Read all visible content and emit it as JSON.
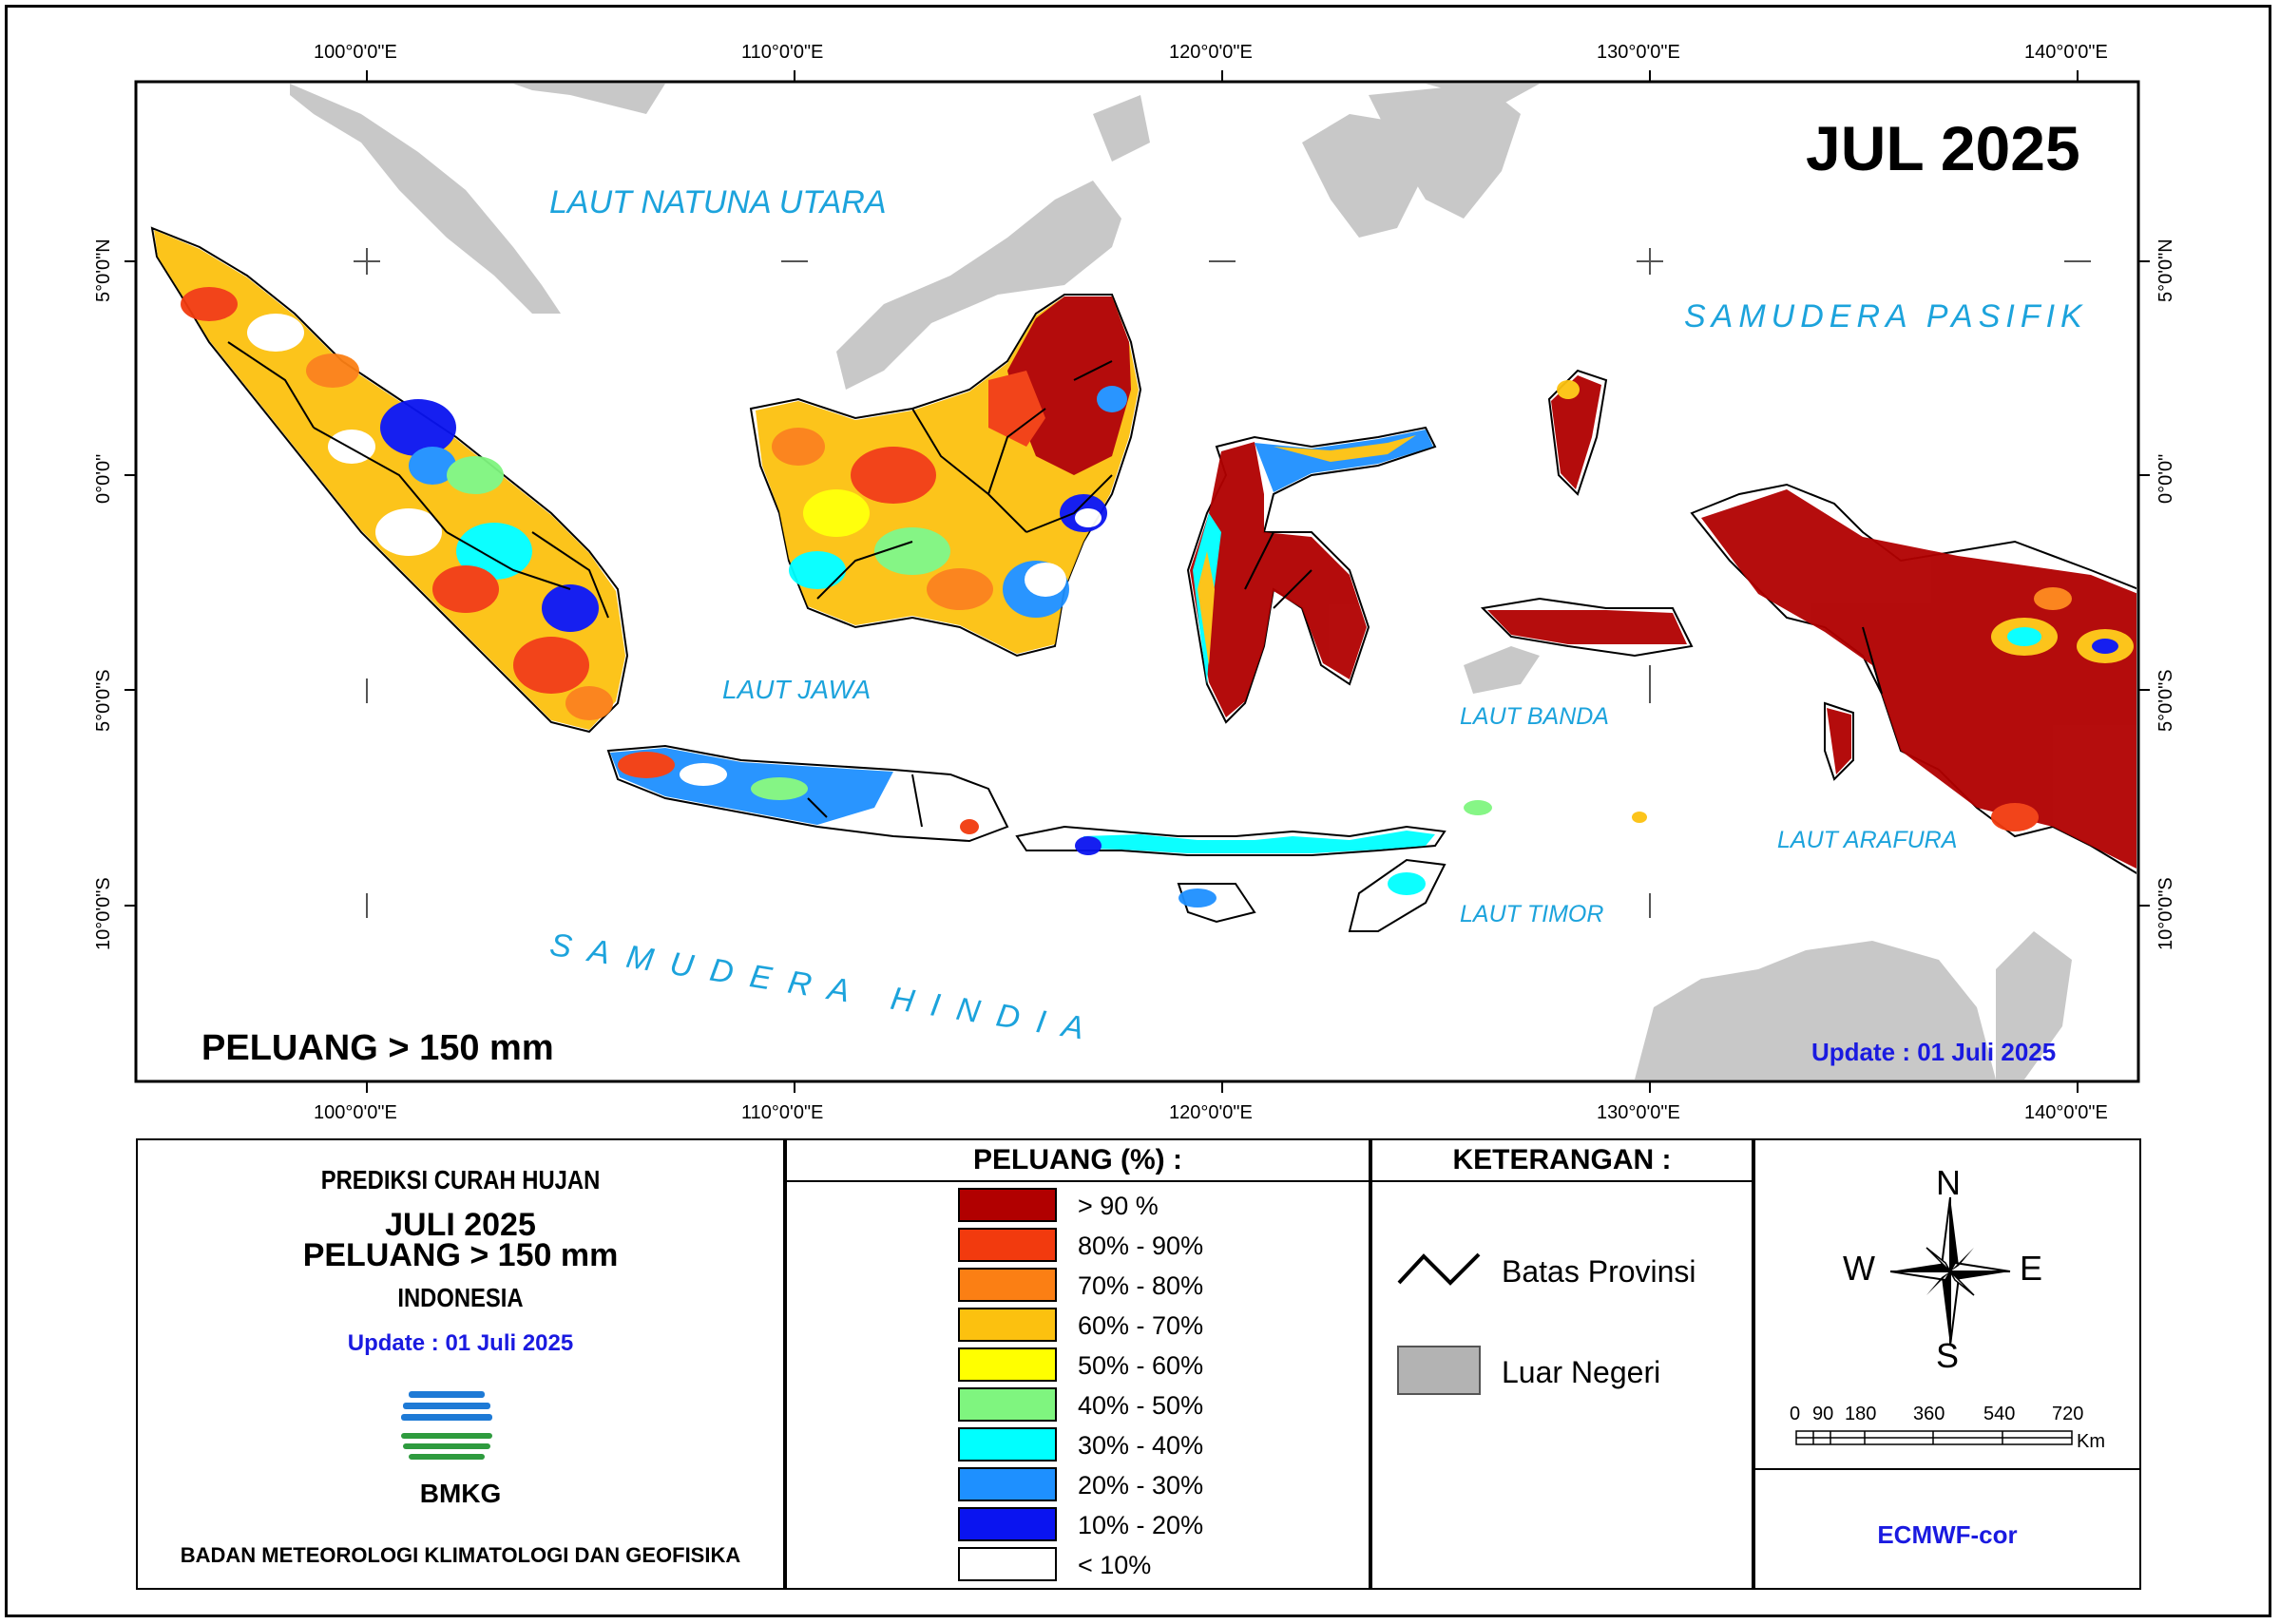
{
  "map": {
    "month_title": "JUL 2025",
    "subtitle": "PELUANG > 150 mm",
    "update": "Update : 01 Juli  2025",
    "top_ticks": [
      "100°0'0\"E",
      "110°0'0\"E",
      "120°0'0\"E",
      "130°0'0\"E",
      "140°0'0\"E"
    ],
    "bottom_ticks": [
      "100°0'0\"E",
      "110°0'0\"E",
      "120°0'0\"E",
      "130°0'0\"E",
      "140°0'0\"E"
    ],
    "left_ticks": [
      "5°0'0\"N",
      "0°0'0\"",
      "5°0'0\"S",
      "10°0'0\"S"
    ],
    "right_ticks": [
      "5°0'0\"N",
      "0°0'0\"",
      "5°0'0\"S",
      "10°0'0\"S"
    ],
    "sea_labels": {
      "natuna": "LAUT NATUNA UTARA",
      "pasifik": "SAMUDERA PASIFIK",
      "jawa": "LAUT JAWA",
      "banda": "LAUT BANDA",
      "arafura": "LAUT ARAFURA",
      "timor": "LAUT TIMOR",
      "hindia": "SAMUDERA HINDIA"
    }
  },
  "info_panel": {
    "line1": "PREDIKSI CURAH HUJAN",
    "line2": "JULI 2025",
    "line3": "PELUANG > 150 mm",
    "line4": "INDONESIA",
    "update": "Update : 01 Juli  2025",
    "logo_text": "BMKG",
    "agency": "BADAN METEOROLOGI KLIMATOLOGI DAN GEOFISIKA"
  },
  "legend": {
    "title": "PELUANG (%) :",
    "items": [
      {
        "label": "> 90 %",
        "color": "#b10000"
      },
      {
        "label": "80% - 90%",
        "color": "#f23a0e"
      },
      {
        "label": "70% - 80%",
        "color": "#fb7f14"
      },
      {
        "label": "60% - 70%",
        "color": "#fcc10f"
      },
      {
        "label": "50% - 60%",
        "color": "#ffff00"
      },
      {
        "label": "40% - 50%",
        "color": "#7ff57f"
      },
      {
        "label": "30% - 40%",
        "color": "#00ffff"
      },
      {
        "label": "20% - 30%",
        "color": "#1e90ff"
      },
      {
        "label": "10% - 20%",
        "color": "#0a14f0"
      },
      {
        "label": "< 10%",
        "color": "#ffffff"
      }
    ]
  },
  "keterangan": {
    "title": "KETERANGAN :",
    "item1": "Batas Provinsi",
    "item2": "Luar Negeri",
    "item2_color": "#b3b3b3"
  },
  "compass": {
    "n": "N",
    "s": "S",
    "e": "E",
    "w": "W"
  },
  "scalebar": {
    "ticks": [
      "0",
      "90",
      "180",
      "360",
      "540",
      "720"
    ],
    "unit": "Km"
  },
  "model": "ECMWF-cor"
}
